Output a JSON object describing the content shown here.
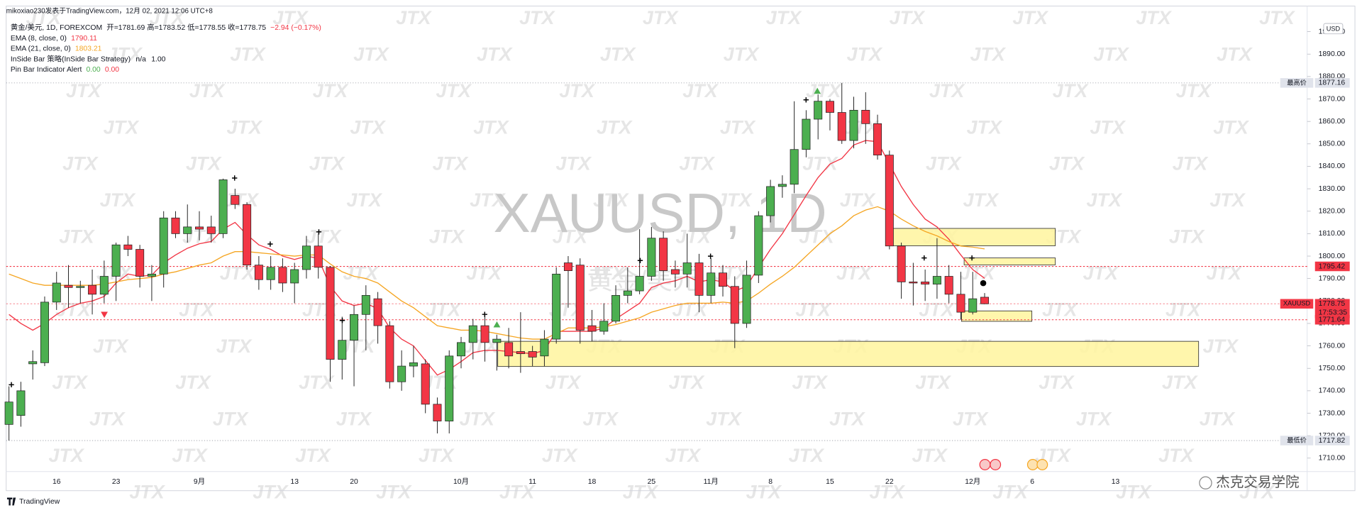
{
  "header": {
    "publish": "mikoxiao230发表于TradingView.com，12月 02, 2021 12:06 UTC+8",
    "symbol": "黄金/美元, 1D, FOREXCOM",
    "ohlc": "开=1781.69 高=1783.52 低=1778.55 收=1778.75",
    "change": "−2.94 (−0.17%)",
    "inside_bar": {
      "name": "InSide Bar 策略(InSide Bar Strategy)",
      "values": [
        "n/a",
        "1.00"
      ]
    },
    "pin_bar": {
      "name": "Pin Bar Indicator Alert",
      "values": [
        "0.00",
        "0.00"
      ]
    }
  },
  "watermark": {
    "symbol": "XAUUSD, 1D",
    "name": "黄金/美元",
    "logo": "JTX"
  },
  "footer": {
    "brand": "TradingView",
    "author": "杰克交易学院"
  },
  "chart_data": {
    "type": "candlestick",
    "currency": "USD",
    "grid": false,
    "up_color": "#4caf50",
    "down_color": "#f23645",
    "categories": [
      null,
      null,
      null,
      null,
      "16",
      null,
      null,
      null,
      null,
      "23",
      null,
      null,
      null,
      null,
      null,
      null,
      "9月",
      null,
      null,
      null,
      null,
      null,
      null,
      null,
      "13",
      null,
      null,
      null,
      null,
      "20",
      null,
      null,
      null,
      null,
      null,
      null,
      null,
      null,
      "10月",
      null,
      null,
      null,
      null,
      null,
      "11",
      null,
      null,
      null,
      null,
      "18",
      null,
      null,
      null,
      null,
      "25",
      null,
      null,
      null,
      null,
      "11月",
      null,
      null,
      null,
      null,
      "8",
      null,
      null,
      null,
      null,
      "15",
      null,
      null,
      null,
      null,
      "22",
      null,
      null,
      null,
      null,
      null,
      null,
      "12月",
      null,
      null,
      null,
      null,
      "6",
      null,
      null,
      null,
      null,
      null,
      null,
      "13"
    ],
    "open": [
      1725,
      1729,
      1752,
      1752.5,
      1779.5,
      1787,
      1786,
      1787,
      1783,
      1791,
      1805,
      1803,
      1791,
      1792,
      1817,
      1810,
      1813,
      1813,
      1810,
      1827,
      1823,
      1796,
      1789.5,
      1795,
      1788,
      1794,
      1804.5,
      1795,
      1754,
      1762.5,
      1774,
      1781,
      1769,
      1744,
      1751,
      1752,
      1734,
      1726.5,
      1755.5,
      1761.5,
      1769,
      1761.5,
      1761.5,
      1757.5,
      1757.5,
      1755.5,
      1763,
      1797,
      1796,
      1769,
      1766.5,
      1771,
      1782.5,
      1784.5,
      1791,
      1808,
      1794,
      1792,
      1797,
      1782.5,
      1792.5,
      1786.5,
      1770,
      1791.5,
      1818,
      1831,
      1832,
      1847.5,
      1861,
      1869,
      1864,
      1851.5,
      1865,
      1859,
      1845,
      1804.5,
      1788.5,
      1788.5,
      1787.5,
      1791,
      1783,
      1775,
      1781.69,
      null,
      null,
      null,
      null,
      null,
      null,
      null,
      null,
      null,
      null,
      null
    ],
    "high": [
      1742,
      1744,
      1758,
      1782,
      1793,
      1796,
      1789,
      1794,
      1798,
      1806,
      1809,
      1805,
      1796,
      1820,
      1820,
      1823,
      1820,
      1818,
      1834.5,
      1830,
      1824,
      1800,
      1800,
      1799,
      1797,
      1809,
      1810,
      1795.5,
      1773,
      1778,
      1787,
      1784,
      1771,
      1758,
      1760,
      1754,
      1737,
      1758,
      1764,
      1772,
      1774,
      1765,
      1768,
      1775,
      1760,
      1767,
      1795,
      1800,
      1799,
      1776,
      1779,
      1787,
      1795,
      1812,
      1813,
      1811,
      1798,
      1810,
      1801,
      1799,
      1796,
      1791,
      1798,
      1820,
      1834,
      1836,
      1869,
      1865,
      1872,
      1870,
      1877.16,
      1871,
      1873,
      1863,
      1847,
      1806,
      1797,
      1794,
      1808,
      1796,
      1793,
      1793,
      1783.52,
      null,
      null,
      null,
      null,
      null,
      null,
      null,
      null,
      null,
      null,
      null
    ],
    "low": [
      1717.82,
      1724,
      1745,
      1751,
      1776,
      1777,
      1779,
      1774,
      1779,
      1780,
      1800,
      1786,
      1780,
      1786,
      1808,
      1806,
      1807,
      1806,
      1808,
      1821,
      1794,
      1785,
      1785,
      1784,
      1779,
      1790,
      1790,
      1744,
      1745,
      1742,
      1758,
      1761,
      1741,
      1740,
      1746,
      1730,
      1721,
      1721,
      1750,
      1754,
      1753,
      1749,
      1750,
      1748,
      1751,
      1751,
      1761,
      1777,
      1761,
      1762,
      1765,
      1770,
      1779,
      1783,
      1789,
      1789,
      1786,
      1786,
      1775,
      1779,
      1782,
      1759,
      1768,
      1788,
      1815,
      1826,
      1828,
      1844,
      1852,
      1856,
      1850,
      1848,
      1850,
      1843,
      1803,
      1781,
      1778,
      1780,
      1781,
      1779,
      1771.64,
      1774,
      1778.55,
      null,
      null,
      null,
      null,
      null,
      null,
      null,
      null,
      null,
      null,
      null
    ],
    "close": [
      1735,
      1740,
      1753,
      1779.5,
      1788,
      1786,
      1786.5,
      1783,
      1791,
      1805,
      1803,
      1791,
      1792,
      1817,
      1810,
      1813,
      1812,
      1810,
      1834,
      1823,
      1796,
      1789.5,
      1795,
      1788,
      1794,
      1804.5,
      1795,
      1754,
      1762.5,
      1774,
      1782.5,
      1769,
      1744,
      1751,
      1752.5,
      1734,
      1726.5,
      1755.5,
      1761.5,
      1769,
      1761.5,
      1763,
      1755.5,
      1756.5,
      1755,
      1763,
      1792,
      1793.5,
      1767,
      1766.5,
      1771,
      1782.5,
      1784.5,
      1791,
      1808,
      1793.5,
      1792,
      1797,
      1782.5,
      1792.5,
      1786.5,
      1770,
      1791.5,
      1818,
      1831,
      1832,
      1847.5,
      1861,
      1869,
      1864,
      1851.5,
      1865,
      1859,
      1845,
      1804.5,
      1788.5,
      1788,
      1787.5,
      1791,
      1783,
      1775,
      1781,
      1778.75,
      null,
      null,
      null,
      null,
      null,
      null,
      null,
      null,
      null,
      null,
      null
    ],
    "series": [
      {
        "name": "EMA (8, close, 0)",
        "color": "#f23645",
        "legend_value": 1790.11,
        "values": [
          1774,
          1770,
          1767,
          1770,
          1774,
          1777,
          1779,
          1780,
          1782,
          1788,
          1792,
          1791,
          1791.5,
          1797,
          1800.5,
          1803.5,
          1805.5,
          1806.5,
          1812,
          1815,
          1809.5,
          1805,
          1803,
          1800,
          1798.5,
          1800,
          1799,
          1786.5,
          1780,
          1778,
          1779,
          1776.5,
          1768,
          1763,
          1760,
          1753.5,
          1747,
          1749.5,
          1753,
          1757,
          1758,
          1758,
          1757.5,
          1757,
          1756.5,
          1758,
          1766.5,
          1766.5,
          1766.5,
          1766.5,
          1768,
          1772,
          1775.5,
          1779,
          1786,
          1788,
          1789,
          1791,
          1788.5,
          1789.5,
          1788.5,
          1784.5,
          1786.5,
          1795,
          1803,
          1810,
          1818.5,
          1827,
          1835,
          1841,
          1843.5,
          1849.5,
          1851.5,
          1851,
          1841,
          1831,
          1823,
          1816.5,
          1813,
          1807.5,
          1800.5,
          1794,
          1790.11,
          null,
          null,
          null,
          null,
          null,
          null,
          null,
          null,
          null,
          null,
          null
        ]
      },
      {
        "name": "EMA (21, close, 0)",
        "color": "#f5a623",
        "legend_value": 1803.21,
        "values": [
          1792,
          1790,
          1788,
          1787,
          1787,
          1787,
          1787,
          1787,
          1787.5,
          1788.5,
          1789.5,
          1790,
          1790.5,
          1792,
          1793,
          1794.5,
          1796,
          1797,
          1800,
          1802,
          1802,
          1801.5,
          1801,
          1800.5,
          1800,
          1800.5,
          1800.5,
          1796.5,
          1793,
          1791,
          1790,
          1788,
          1784,
          1780,
          1777,
          1773,
          1769,
          1768,
          1767,
          1767,
          1766.5,
          1765.5,
          1764.5,
          1763.5,
          1763,
          1763,
          1765.5,
          1768,
          1768,
          1768,
          1768.5,
          1769.5,
          1771,
          1772.5,
          1775,
          1776.5,
          1778,
          1779,
          1779,
          1779,
          1779.5,
          1779,
          1780,
          1783.5,
          1787.5,
          1791,
          1795,
          1800,
          1805,
          1810,
          1813.5,
          1818,
          1820.5,
          1822,
          1820,
          1816.5,
          1813.5,
          1811,
          1809,
          1806.5,
          1804.5,
          1804,
          1803.21,
          null,
          null,
          null,
          null,
          null,
          null,
          null,
          null,
          null,
          null,
          null
        ]
      }
    ],
    "ylim": [
      1704,
      1911
    ],
    "yticks": [
      {
        "value": 1710,
        "label": "1710.00"
      },
      {
        "value": 1720,
        "label": "1720.00"
      },
      {
        "value": 1730,
        "label": "1730.00"
      },
      {
        "value": 1740,
        "label": "1740.00"
      },
      {
        "value": 1750,
        "label": "1750.00"
      },
      {
        "value": 1760,
        "label": "1760.00"
      },
      {
        "value": 1770,
        "label": "1770.00"
      },
      {
        "value": 1780,
        "label": "1780.00"
      },
      {
        "value": 1790,
        "label": "1790.00"
      },
      {
        "value": 1800,
        "label": "1800.00"
      },
      {
        "value": 1810,
        "label": "1810.00"
      },
      {
        "value": 1820,
        "label": "1820.00"
      },
      {
        "value": 1830,
        "label": "1830.00"
      },
      {
        "value": 1840,
        "label": "1840.00"
      },
      {
        "value": 1850,
        "label": "1850.00"
      },
      {
        "value": 1860,
        "label": "1860.00"
      },
      {
        "value": 1870,
        "label": "1870.00"
      },
      {
        "value": 1880,
        "label": "1880.00"
      },
      {
        "value": 1890,
        "label": "1890.00"
      },
      {
        "value": 1900,
        "label": "1900.00"
      }
    ],
    "price_lines": [
      {
        "label": "最高价",
        "value": 1877.16,
        "color": "#9598a1"
      },
      {
        "value": 1795.42,
        "color": "#f23645"
      },
      {
        "label": "XAUUSD",
        "value": 1778.75,
        "countdown": "17:53:35",
        "color": "#f23645"
      },
      {
        "value": 1771.64,
        "color": "#f23645"
      },
      {
        "label": "最低价",
        "value": 1717.82,
        "color": "#9598a1"
      }
    ]
  }
}
